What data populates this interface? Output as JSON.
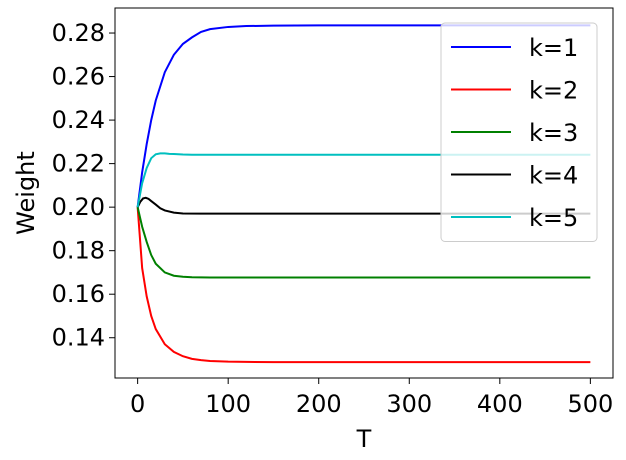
{
  "chart_data": {
    "type": "line",
    "xlabel": "T",
    "ylabel": "Weight",
    "xlim": [
      -25,
      525
    ],
    "ylim": [
      0.1215,
      0.2915
    ],
    "xticks": [
      0,
      100,
      200,
      300,
      400,
      500
    ],
    "xtick_labels": [
      "0",
      "100",
      "200",
      "300",
      "400",
      "500"
    ],
    "yticks": [
      0.14,
      0.16,
      0.18,
      0.2,
      0.22,
      0.24,
      0.26,
      0.28
    ],
    "ytick_labels": [
      "0.14",
      "0.16",
      "0.18",
      "0.20",
      "0.22",
      "0.24",
      "0.26",
      "0.28"
    ],
    "grid": false,
    "legend_position": "top-right",
    "series": [
      {
        "name": "k=1",
        "color": "#0000ff",
        "x": [
          0,
          5,
          10,
          15,
          20,
          30,
          40,
          50,
          60,
          70,
          80,
          100,
          120,
          150,
          200,
          300,
          400,
          500
        ],
        "y": [
          0.2,
          0.216,
          0.229,
          0.24,
          0.249,
          0.262,
          0.27,
          0.275,
          0.278,
          0.2805,
          0.2818,
          0.2828,
          0.2832,
          0.2834,
          0.2835,
          0.2835,
          0.2835,
          0.2835
        ]
      },
      {
        "name": "k=2",
        "color": "#ff0000",
        "x": [
          0,
          5,
          10,
          15,
          20,
          30,
          40,
          50,
          60,
          70,
          80,
          100,
          120,
          150,
          200,
          300,
          400,
          500
        ],
        "y": [
          0.2,
          0.172,
          0.159,
          0.15,
          0.144,
          0.137,
          0.1335,
          0.1315,
          0.1303,
          0.1297,
          0.1293,
          0.129,
          0.1289,
          0.1288,
          0.1288,
          0.1288,
          0.1288,
          0.1288
        ]
      },
      {
        "name": "k=3",
        "color": "#008000",
        "x": [
          0,
          5,
          10,
          15,
          20,
          30,
          40,
          50,
          60,
          80,
          100,
          150,
          200,
          300,
          400,
          500
        ],
        "y": [
          0.2,
          0.191,
          0.184,
          0.178,
          0.174,
          0.17,
          0.1685,
          0.168,
          0.1678,
          0.1677,
          0.1677,
          0.1677,
          0.1677,
          0.1677,
          0.1677,
          0.1677
        ]
      },
      {
        "name": "k=4",
        "color": "#000000",
        "x": [
          0,
          3,
          6,
          9,
          12,
          15,
          20,
          25,
          30,
          40,
          50,
          70,
          100,
          150,
          200,
          300,
          400,
          500
        ],
        "y": [
          0.2,
          0.2025,
          0.204,
          0.2043,
          0.2038,
          0.2028,
          0.2012,
          0.1995,
          0.1985,
          0.1975,
          0.1971,
          0.197,
          0.197,
          0.197,
          0.197,
          0.197,
          0.197,
          0.197
        ]
      },
      {
        "name": "k=5",
        "color": "#00bfbf",
        "x": [
          0,
          5,
          10,
          15,
          20,
          25,
          30,
          35,
          40,
          50,
          60,
          80,
          100,
          150,
          200,
          300,
          400,
          500
        ],
        "y": [
          0.2,
          0.211,
          0.218,
          0.2225,
          0.2243,
          0.2247,
          0.2247,
          0.2245,
          0.2244,
          0.2242,
          0.2241,
          0.2241,
          0.2241,
          0.2241,
          0.2241,
          0.2241,
          0.2241,
          0.2241
        ]
      }
    ]
  }
}
